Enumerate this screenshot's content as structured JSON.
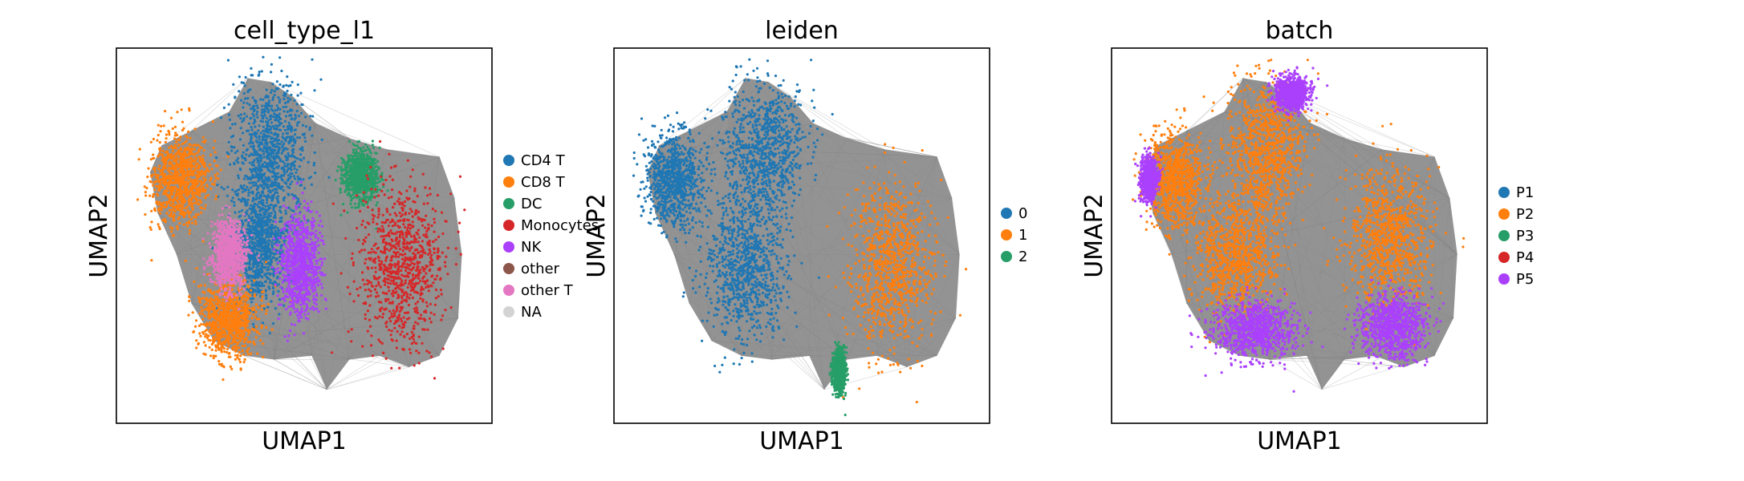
{
  "chart_data": [
    {
      "type": "scatter",
      "title": "cell_type_l1",
      "xlabel": "UMAP1",
      "ylabel": "UMAP2",
      "grid": false,
      "legend": "right",
      "categories": [
        {
          "name": "CD4 T",
          "color": "#1f77b4"
        },
        {
          "name": "CD8 T",
          "color": "#ff7f0e"
        },
        {
          "name": "DC",
          "color": "#279e68"
        },
        {
          "name": "Monocytes",
          "color": "#d62728"
        },
        {
          "name": "NK",
          "color": "#aa40fc"
        },
        {
          "name": "other",
          "color": "#8c564b"
        },
        {
          "name": "other T",
          "color": "#e377c2"
        },
        {
          "name": "NA",
          "color": "#d3d3d3"
        }
      ],
      "edge_color": "#808080",
      "clusters": [
        {
          "label": "CD4 T",
          "cx": 0.41,
          "cy": 0.27,
          "sx": 0.09,
          "sy": 0.17
        },
        {
          "label": "CD4 T",
          "cx": 0.38,
          "cy": 0.52,
          "sx": 0.06,
          "sy": 0.15
        },
        {
          "label": "CD8 T",
          "cx": 0.17,
          "cy": 0.35,
          "sx": 0.07,
          "sy": 0.11
        },
        {
          "label": "CD8 T",
          "cx": 0.3,
          "cy": 0.72,
          "sx": 0.07,
          "sy": 0.09
        },
        {
          "label": "NK",
          "cx": 0.49,
          "cy": 0.58,
          "sx": 0.05,
          "sy": 0.12
        },
        {
          "label": "other T",
          "cx": 0.3,
          "cy": 0.55,
          "sx": 0.04,
          "sy": 0.08
        },
        {
          "label": "DC",
          "cx": 0.65,
          "cy": 0.34,
          "sx": 0.04,
          "sy": 0.06
        },
        {
          "label": "Monocytes",
          "cx": 0.76,
          "cy": 0.58,
          "sx": 0.1,
          "sy": 0.2
        }
      ]
    },
    {
      "type": "scatter",
      "title": "leiden",
      "xlabel": "UMAP1",
      "ylabel": "UMAP2",
      "grid": false,
      "legend": "right",
      "categories": [
        {
          "name": "0",
          "color": "#1f77b4"
        },
        {
          "name": "1",
          "color": "#ff7f0e"
        },
        {
          "name": "2",
          "color": "#279e68"
        }
      ],
      "edge_color": "#808080",
      "clusters": [
        {
          "label": "0",
          "cx": 0.4,
          "cy": 0.27,
          "sx": 0.1,
          "sy": 0.17
        },
        {
          "label": "0",
          "cx": 0.16,
          "cy": 0.35,
          "sx": 0.07,
          "sy": 0.11
        },
        {
          "label": "0",
          "cx": 0.35,
          "cy": 0.58,
          "sx": 0.1,
          "sy": 0.17
        },
        {
          "label": "1",
          "cx": 0.74,
          "cy": 0.58,
          "sx": 0.1,
          "sy": 0.2
        },
        {
          "label": "2",
          "cx": 0.6,
          "cy": 0.86,
          "sx": 0.015,
          "sy": 0.05
        }
      ]
    },
    {
      "type": "scatter",
      "title": "batch",
      "xlabel": "UMAP1",
      "ylabel": "UMAP2",
      "grid": false,
      "legend": "right",
      "categories": [
        {
          "name": "P1",
          "color": "#1f77b4"
        },
        {
          "name": "P2",
          "color": "#ff7f0e"
        },
        {
          "name": "P3",
          "color": "#279e68"
        },
        {
          "name": "P4",
          "color": "#d62728"
        },
        {
          "name": "P5",
          "color": "#aa40fc"
        }
      ],
      "edge_color": "#808080",
      "clusters": [
        {
          "label": "P2",
          "cx": 0.41,
          "cy": 0.27,
          "sx": 0.09,
          "sy": 0.17
        },
        {
          "label": "P2",
          "cx": 0.17,
          "cy": 0.35,
          "sx": 0.07,
          "sy": 0.11
        },
        {
          "label": "P2",
          "cx": 0.33,
          "cy": 0.55,
          "sx": 0.1,
          "sy": 0.14
        },
        {
          "label": "P2",
          "cx": 0.74,
          "cy": 0.5,
          "sx": 0.1,
          "sy": 0.16
        },
        {
          "label": "P5",
          "cx": 0.38,
          "cy": 0.75,
          "sx": 0.1,
          "sy": 0.07
        },
        {
          "label": "P5",
          "cx": 0.75,
          "cy": 0.74,
          "sx": 0.08,
          "sy": 0.08
        },
        {
          "label": "P5",
          "cx": 0.1,
          "cy": 0.35,
          "sx": 0.02,
          "sy": 0.05
        },
        {
          "label": "P5",
          "cx": 0.48,
          "cy": 0.12,
          "sx": 0.04,
          "sy": 0.04
        }
      ]
    }
  ]
}
